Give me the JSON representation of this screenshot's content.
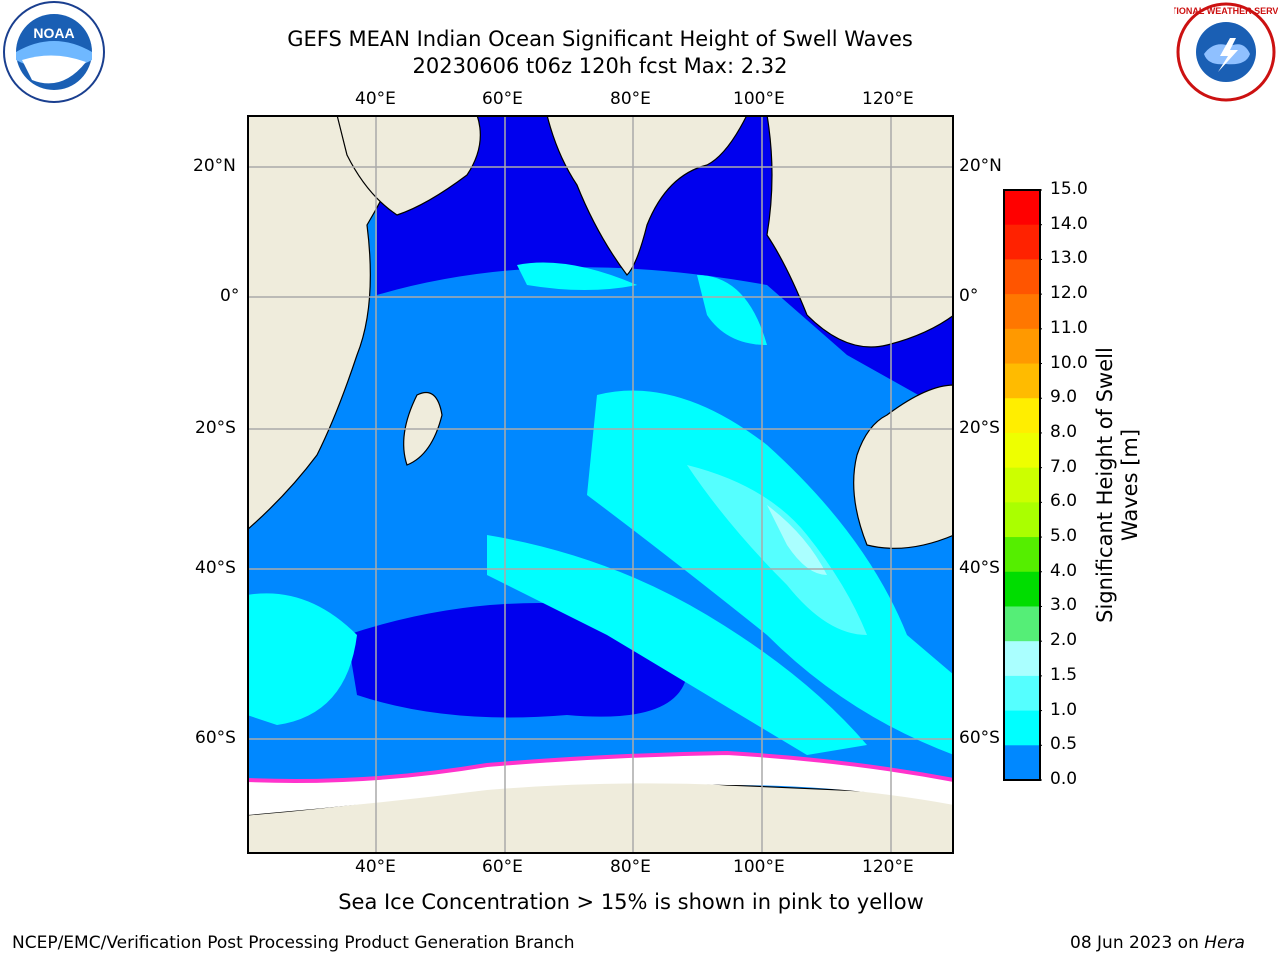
{
  "title_line1": "GEFS MEAN Indian Ocean Significant Height of Swell Waves",
  "title_line2": "20230606 t06z 120h fcst   Max: 2.32",
  "lon_labels": [
    "40°E",
    "60°E",
    "80°E",
    "100°E",
    "120°E"
  ],
  "lat_labels_left": [
    "20°N",
    "0°",
    "20°S",
    "40°S",
    "60°S"
  ],
  "lat_labels_right": [
    "20°N",
    "0°",
    "20°S",
    "40°S",
    "60°S"
  ],
  "colorbar": {
    "label_line1": "Significant Height of Swell",
    "label_line2": "Waves [m]",
    "ticks": [
      "15.0",
      "14.0",
      "13.0",
      "12.0",
      "11.0",
      "10.0",
      "9.0",
      "8.0",
      "7.0",
      "6.0",
      "5.0",
      "4.0",
      "3.0",
      "2.0",
      "1.5",
      "1.0",
      "0.5",
      "0.0"
    ],
    "colors": [
      "#ff0000",
      "#ff2200",
      "#ff5500",
      "#ff7700",
      "#ff9900",
      "#ffbb00",
      "#ffee00",
      "#eeff00",
      "#ccff00",
      "#aaff00",
      "#55ee00",
      "#00dd00",
      "#55ee77",
      "#aaffff",
      "#55ffff",
      "#00ffff",
      "#0088ff",
      "#0000ff"
    ]
  },
  "map_colors": {
    "land": "#efecdc",
    "ocean_low": "#0000ee",
    "ocean_mid": "#0088ff",
    "ocean_high": "#00ffff",
    "ocean_higher": "#55ffff",
    "ice": "#ffffff",
    "ice_edge": "#ff33cc"
  },
  "logos": {
    "noaa_text": "NOAA",
    "nws_text": "NATIONAL WEATHER SERVICE"
  },
  "caption": "Sea Ice Concentration > 15% is shown in pink to yellow",
  "footer_left": "NCEP/EMC/Verification Post Processing Product Generation Branch",
  "footer_date": "08 Jun 2023 on ",
  "footer_host": "Hera"
}
